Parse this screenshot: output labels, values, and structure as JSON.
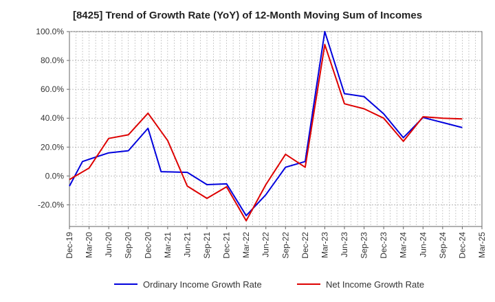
{
  "chart_data": {
    "type": "line",
    "title": "[8425]  Trend of Growth Rate (YoY) of 12-Month Moving Sum of Incomes",
    "xlabel": "",
    "ylabel": "",
    "x": [
      "Dec-19",
      "Mar-20",
      "Jun-20",
      "Sep-20",
      "Dec-20",
      "Mar-21",
      "Jun-21",
      "Sep-21",
      "Dec-21",
      "Mar-22",
      "Jun-22",
      "Sep-22",
      "Dec-22",
      "Mar-23",
      "Jun-23",
      "Sep-23",
      "Dec-23",
      "Mar-24",
      "Jun-24",
      "Sep-24",
      "Dec-24",
      "Mar-25"
    ],
    "x_ticks": [
      "Dec-19",
      "Mar-20",
      "Jun-20",
      "Sep-20",
      "Dec-20",
      "Mar-21",
      "Jun-21",
      "Sep-21",
      "Dec-21",
      "Mar-22",
      "Jun-22",
      "Sep-22",
      "Dec-22",
      "Mar-23",
      "Jun-23",
      "Sep-23",
      "Dec-23",
      "Mar-24",
      "Jun-24",
      "Sep-24",
      "Dec-24",
      "Mar-25"
    ],
    "y_ticks": [
      "100.0%",
      "80.0%",
      "60.0%",
      "40.0%",
      "20.0%",
      "0.0%",
      "-20.0%"
    ],
    "y_tick_values": [
      100,
      80,
      60,
      40,
      20,
      0,
      -20
    ],
    "ylim": [
      -35,
      100
    ],
    "grid": true,
    "legend_position": "bottom",
    "series": [
      {
        "name": "Ordinary Income Growth Rate",
        "color": "#0000dd",
        "points": [
          [
            "Dec-19",
            -7
          ],
          [
            "Feb-20",
            10
          ],
          [
            "Jun-20",
            16
          ],
          [
            "Sep-20",
            17.5
          ],
          [
            "Dec-20",
            33
          ],
          [
            "Feb-21",
            3
          ],
          [
            "Jun-21",
            2.5
          ],
          [
            "Sep-21",
            -6
          ],
          [
            "Dec-21",
            -5.5
          ],
          [
            "Mar-22",
            -27.5
          ],
          [
            "Jun-22",
            -13
          ],
          [
            "Sep-22",
            6
          ],
          [
            "Dec-22",
            10
          ],
          [
            "Mar-23",
            100
          ],
          [
            "Jun-23",
            57
          ],
          [
            "Sep-23",
            55
          ],
          [
            "Dec-23",
            43
          ],
          [
            "Mar-24",
            26.5
          ],
          [
            "Jun-24",
            40.5
          ],
          [
            "Sep-24",
            37
          ],
          [
            "Dec-24",
            33.5
          ]
        ]
      },
      {
        "name": "Net Income Growth Rate",
        "color": "#dd0000",
        "points": [
          [
            "Dec-19",
            -2.5
          ],
          [
            "Mar-20",
            5.5
          ],
          [
            "Jun-20",
            26
          ],
          [
            "Sep-20",
            28.5
          ],
          [
            "Dec-20",
            43.5
          ],
          [
            "Mar-21",
            24.5
          ],
          [
            "Jun-21",
            -7
          ],
          [
            "Sep-21",
            -15.5
          ],
          [
            "Dec-21",
            -7.5
          ],
          [
            "Mar-22",
            -31
          ],
          [
            "Jun-22",
            -6
          ],
          [
            "Sep-22",
            15
          ],
          [
            "Dec-22",
            6
          ],
          [
            "Mar-23",
            91
          ],
          [
            "Jun-23",
            50
          ],
          [
            "Sep-23",
            46.5
          ],
          [
            "Dec-23",
            40
          ],
          [
            "Mar-24",
            24
          ],
          [
            "Jun-24",
            41
          ],
          [
            "Sep-24",
            40
          ],
          [
            "Dec-24",
            39.5
          ]
        ]
      }
    ]
  }
}
